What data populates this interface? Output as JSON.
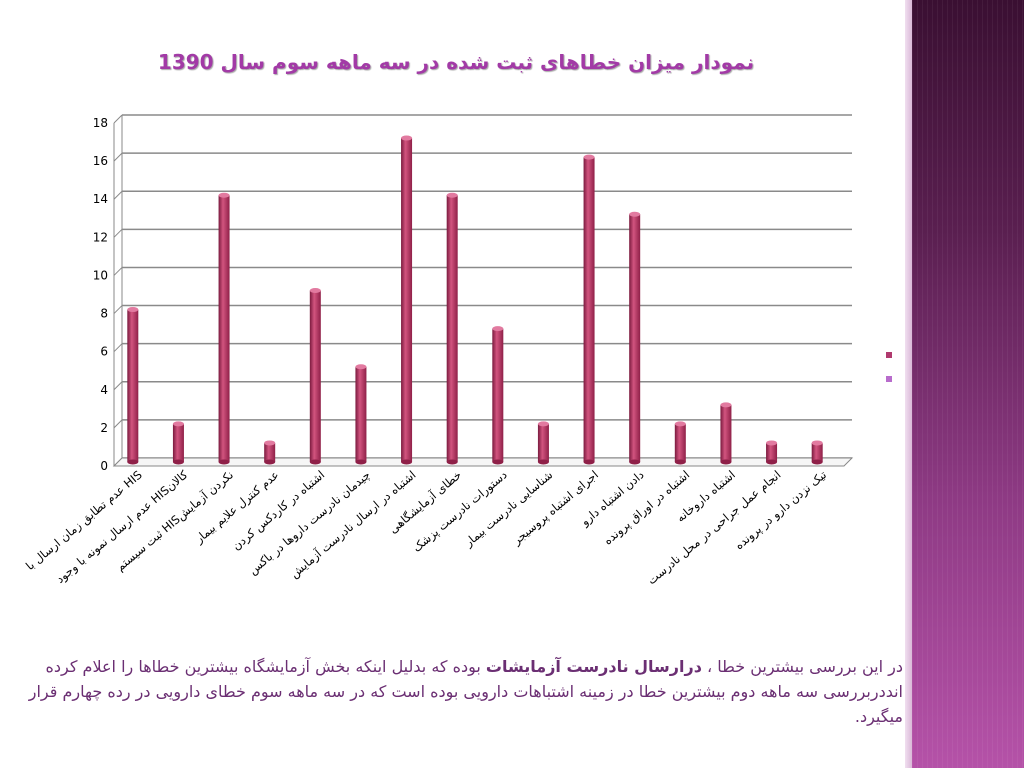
{
  "title": "نمودار میزان خطاهای ثبت شده در سه ماهه سوم سال 1390",
  "summary": {
    "before": "در این بررسی بیشترین خطا ، ",
    "bold": "درارسال نادرست آزمایشات",
    "after": " بوده که بدلیل اینکه بخش آزمایشگاه بیشترین خطاها را اعلام کرده انددربررسی سه ماهه دوم بیشترین خطا در زمینه اشتباهات دارویی بوده است که در سه ماهه سوم خطای دارویی در رده چهارم قرار میگیرد."
  },
  "colors": {
    "bar": "#b02c5a",
    "accent": "#a23aa6",
    "bullet1": "#b03a6e",
    "bullet2": "#b86ccc"
  },
  "chart_data": {
    "type": "bar",
    "title": "نمودار میزان خطاهای ثبت شده در سه ماهه سوم سال 1390",
    "xlabel": "",
    "ylabel": "",
    "ylim": [
      0,
      18
    ],
    "yticks": [
      0,
      2,
      4,
      6,
      8,
      10,
      12,
      14,
      16,
      18
    ],
    "grid": true,
    "categories": [
      "عدم تطابق زمان ارسال با HIS",
      "عدم ارسال نمونه با وجود HISکالان",
      "ثبت سیستم HISنکردن آزمایش",
      "عدم کنترل علایم بیمار",
      "اشتباه در کاردکس کردن",
      "چیدمان نادرست داروها در باکس",
      "اشتباه در ارسال نادرست آزمایش",
      "خطای آزمایشگاهی",
      "دستورات نادرست پزشک",
      "شناسایی نادرست بیمار",
      "اجرای اشتباه پروسیجر",
      "دادن اشتباه دارو",
      "اشتباه در اوراق پرونده",
      "اشتباه داروخانه",
      "انجام عمل جراحی در محل نادرست",
      "تیک نزدن دارو در پرونده"
    ],
    "values": [
      8,
      2,
      14,
      1,
      9,
      5,
      17,
      14,
      7,
      2,
      16,
      13,
      2,
      3,
      1,
      1
    ]
  }
}
